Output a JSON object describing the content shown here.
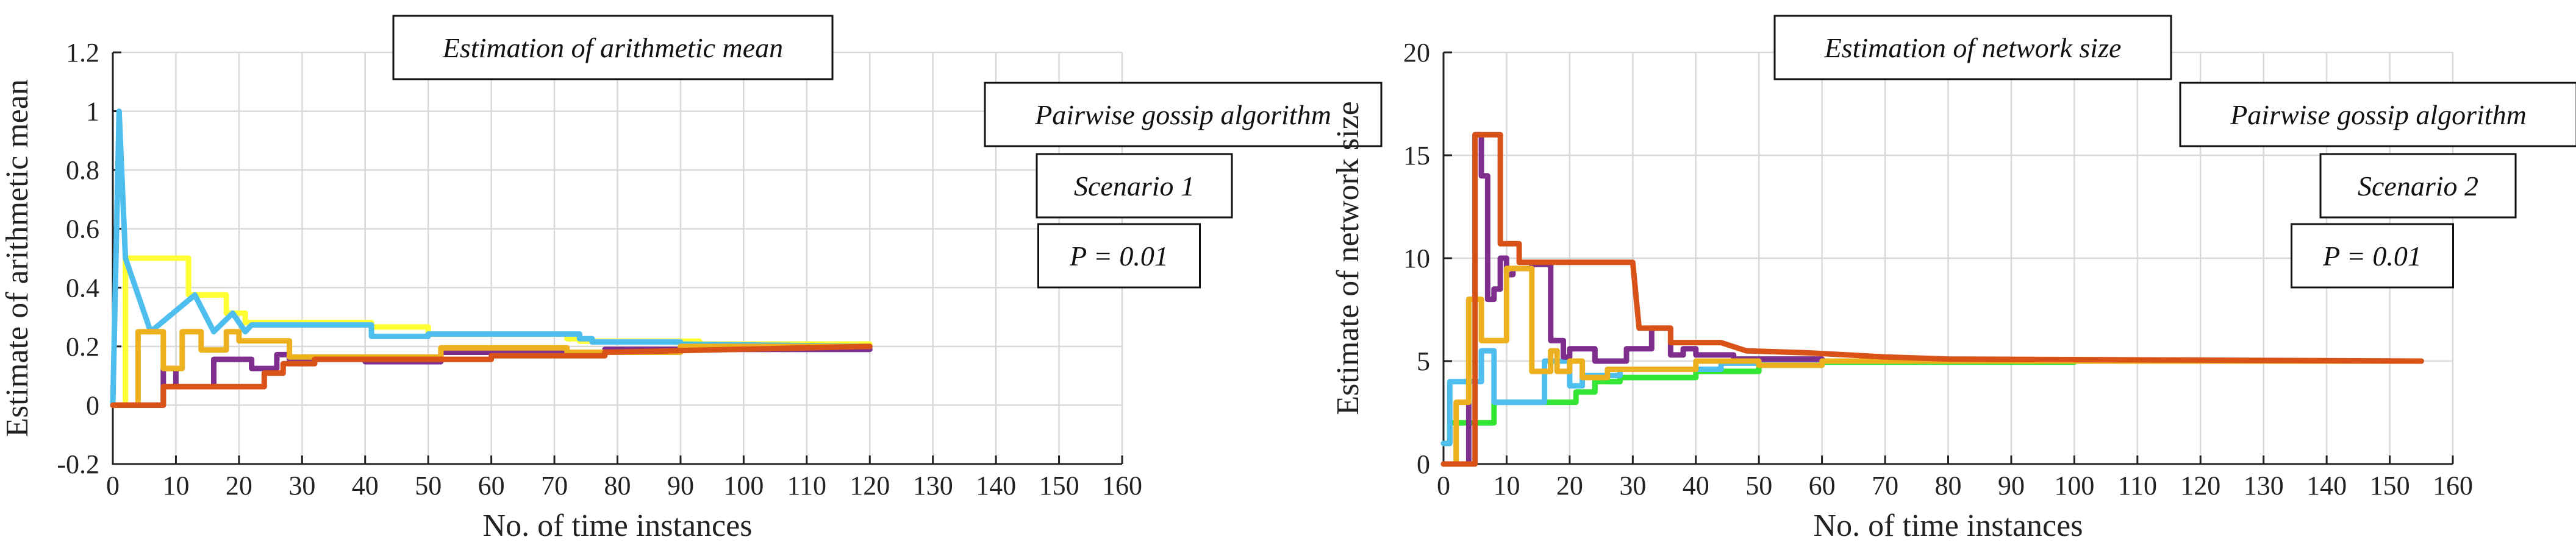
{
  "chart_data": [
    {
      "type": "line",
      "title": "Estimation of arithmetic mean",
      "xlabel": "No. of time instances",
      "ylabel": "Estimate of arithmetic mean",
      "xlim": [
        0,
        160
      ],
      "ylim": [
        -0.2,
        1.2
      ],
      "xticks": [
        "0",
        "10",
        "20",
        "30",
        "40",
        "50",
        "60",
        "70",
        "80",
        "90",
        "100",
        "110",
        "120",
        "130",
        "140",
        "150",
        "160"
      ],
      "yticks": [
        "-0.2",
        "0",
        "0.2",
        "0.4",
        "0.6",
        "0.8",
        "1",
        "1.2"
      ],
      "grid": true,
      "annotations": [
        "Estimation of arithmetic mean",
        "Pairwise gossip algorithm",
        "Scenario 1",
        "P = 0.01"
      ],
      "series": [
        {
          "name": "node-yellow",
          "color": "#FFFF33",
          "x": [
            0,
            2,
            2,
            12,
            12,
            18,
            18,
            21,
            21,
            41,
            41,
            50,
            50,
            72,
            72,
            74,
            74,
            93,
            93,
            120
          ],
          "y": [
            0,
            0,
            0.5,
            0.5,
            0.375,
            0.375,
            0.313,
            0.313,
            0.281,
            0.281,
            0.266,
            0.266,
            0.242,
            0.242,
            0.226,
            0.226,
            0.218,
            0.218,
            0.208,
            0.208
          ]
        },
        {
          "name": "node-purple",
          "color": "#7E2F8E",
          "x": [
            0,
            8,
            8,
            10,
            10,
            16,
            16,
            22,
            22,
            26,
            26,
            28,
            28,
            40,
            40,
            52,
            52,
            72,
            72,
            78,
            78,
            120
          ],
          "y": [
            0,
            0,
            0.125,
            0.125,
            0.063,
            0.063,
            0.156,
            0.156,
            0.125,
            0.125,
            0.172,
            0.172,
            0.156,
            0.156,
            0.148,
            0.148,
            0.18,
            0.18,
            0.172,
            0.172,
            0.19,
            0.19
          ]
        },
        {
          "name": "node-blue",
          "color": "#4DBEEE",
          "x": [
            0,
            1,
            1,
            2,
            2,
            6,
            6,
            13,
            13,
            16,
            16,
            19,
            19,
            21,
            21,
            22,
            22,
            41,
            41,
            50,
            50,
            74,
            74,
            76,
            76,
            90,
            90,
            120
          ],
          "y": [
            0,
            1,
            1,
            0.5,
            0.5,
            0.25,
            0.25,
            0.375,
            0.375,
            0.25,
            0.25,
            0.313,
            0.313,
            0.25,
            0.25,
            0.273,
            0.273,
            0.273,
            0.234,
            0.234,
            0.242,
            0.242,
            0.226,
            0.226,
            0.215,
            0.215,
            0.208,
            0.2
          ]
        },
        {
          "name": "node-orange-light",
          "color": "#EDB120",
          "x": [
            0,
            4,
            4,
            8,
            8,
            11,
            11,
            14,
            14,
            18,
            18,
            20,
            20,
            28,
            28,
            41,
            41,
            52,
            52,
            72,
            72,
            90,
            90,
            120
          ],
          "y": [
            0,
            0,
            0.25,
            0.25,
            0.125,
            0.125,
            0.25,
            0.25,
            0.188,
            0.188,
            0.25,
            0.25,
            0.219,
            0.219,
            0.164,
            0.164,
            0.164,
            0.164,
            0.195,
            0.195,
            0.18,
            0.18,
            0.2,
            0.2
          ]
        },
        {
          "name": "node-red",
          "color": "#D95319",
          "x": [
            0,
            8,
            8,
            24,
            24,
            27,
            27,
            32,
            32,
            60,
            60,
            78,
            78,
            120
          ],
          "y": [
            0,
            0,
            0.063,
            0.063,
            0.109,
            0.109,
            0.141,
            0.141,
            0.156,
            0.156,
            0.168,
            0.168,
            0.18,
            0.2
          ]
        }
      ]
    },
    {
      "type": "line",
      "title": "Estimation of network size",
      "xlabel": "No. of time instances",
      "ylabel": "Estimate of network size",
      "xlim": [
        0,
        160
      ],
      "ylim": [
        0,
        20
      ],
      "xticks": [
        "0",
        "10",
        "20",
        "30",
        "40",
        "50",
        "60",
        "70",
        "80",
        "90",
        "100",
        "110",
        "120",
        "130",
        "140",
        "150",
        "160"
      ],
      "yticks": [
        "0",
        "5",
        "10",
        "15",
        "20"
      ],
      "grid": true,
      "annotations": [
        "Estimation of network size",
        "Pairwise gossip algorithm",
        "Scenario 2",
        "P = 0.01"
      ],
      "series": [
        {
          "name": "node-green",
          "color": "#33E633",
          "x": [
            0,
            1,
            1,
            8,
            8,
            16,
            16,
            21,
            21,
            24,
            24,
            28,
            28,
            40,
            40,
            50,
            50,
            60,
            60,
            100,
            100,
            155
          ],
          "y": [
            1,
            1,
            2,
            2,
            3,
            3,
            3,
            3,
            3.5,
            3.5,
            4,
            4,
            4.2,
            4.2,
            4.5,
            4.5,
            4.8,
            4.8,
            4.95,
            4.95,
            5,
            5
          ]
        },
        {
          "name": "node-blue",
          "color": "#4DBEEE",
          "x": [
            0,
            1,
            1,
            4,
            4,
            6,
            6,
            8,
            8,
            16,
            16,
            20,
            20,
            22,
            22,
            28,
            28,
            44,
            44,
            60,
            60,
            80,
            80,
            155
          ],
          "y": [
            1,
            1,
            4,
            4,
            4,
            4,
            5.5,
            5.5,
            3,
            3,
            5,
            5,
            3.8,
            3.8,
            4.3,
            4.3,
            4.6,
            4.6,
            4.9,
            4.9,
            5,
            5,
            5,
            5
          ]
        },
        {
          "name": "node-purple",
          "color": "#7E2F8E",
          "x": [
            0,
            4,
            4,
            5,
            5,
            6,
            6,
            7,
            7,
            8,
            8,
            9,
            9,
            10,
            10,
            11,
            11,
            14,
            14,
            17,
            17,
            19,
            19,
            20,
            20,
            24,
            24,
            29,
            29,
            33,
            33,
            36,
            36,
            38,
            38,
            40,
            40,
            46,
            46,
            60,
            60,
            80,
            80,
            155
          ],
          "y": [
            0,
            0,
            8,
            8,
            16,
            16,
            14,
            14,
            8,
            8,
            8.5,
            8.5,
            10,
            10,
            9.2,
            9.2,
            9.5,
            9.5,
            9.7,
            9.7,
            6,
            6,
            5.2,
            5.2,
            5.6,
            5.6,
            5,
            5,
            5.6,
            5.6,
            6.6,
            6.6,
            5.3,
            5.3,
            5.6,
            5.6,
            5.3,
            5.3,
            5.1,
            5.1,
            5,
            5,
            5,
            5
          ]
        },
        {
          "name": "node-orange-light",
          "color": "#EDB120",
          "x": [
            0,
            2,
            2,
            4,
            4,
            6,
            6,
            8,
            8,
            10,
            10,
            14,
            14,
            17,
            17,
            18,
            18,
            20,
            20,
            22,
            22,
            26,
            26,
            40,
            40,
            50,
            50,
            60,
            60,
            155
          ],
          "y": [
            0,
            0,
            3,
            3,
            8,
            8,
            6,
            6,
            6,
            6,
            9.5,
            9.5,
            4.5,
            4.5,
            5.5,
            5.5,
            4.5,
            4.5,
            5,
            5,
            4.2,
            4.2,
            4.6,
            4.6,
            5,
            5,
            4.8,
            4.8,
            5,
            5
          ]
        },
        {
          "name": "node-red",
          "color": "#D95319",
          "x": [
            0,
            5,
            5,
            8,
            8,
            9,
            9,
            12,
            12,
            30,
            30,
            31,
            31,
            36,
            36,
            44,
            44,
            48,
            48,
            58,
            58,
            70,
            70,
            80,
            80,
            155
          ],
          "y": [
            0,
            0,
            16,
            16,
            16,
            16,
            10.7,
            10.7,
            9.8,
            9.8,
            9.8,
            6.6,
            6.6,
            6.6,
            5.9,
            5.9,
            5.9,
            5.5,
            5.5,
            5.4,
            5.4,
            5.2,
            5.2,
            5.1,
            5.1,
            5
          ]
        }
      ]
    }
  ]
}
